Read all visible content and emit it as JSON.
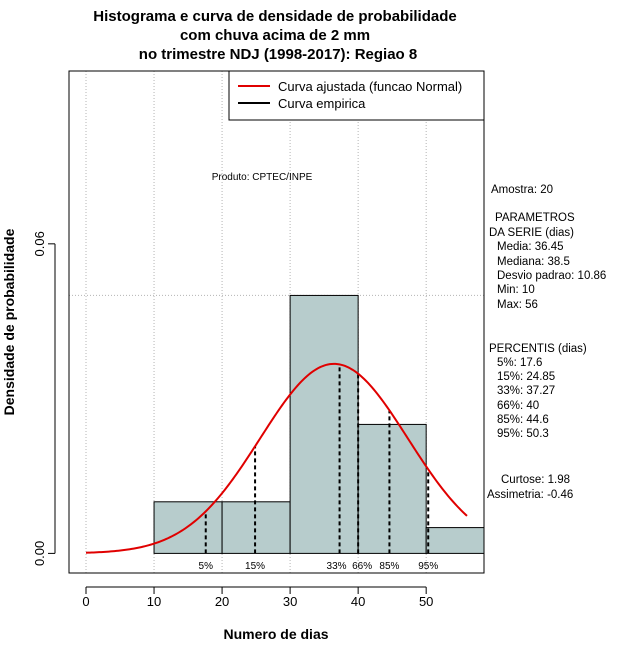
{
  "chart_data": {
    "type": "bar",
    "title": [
      "Histograma e curva de densidade de probabilidade",
      "com chuva acima de 2 mm",
      "no trimestre NDJ (1998-2017): Regiao 8"
    ],
    "xlabel": "Numero de dias",
    "ylabel": "Densidade de probabilidade",
    "xlim": [
      -2.5,
      58.5
    ],
    "ylim": [
      -0.0038,
      0.0935
    ],
    "x_ticks": [
      0,
      10,
      20,
      30,
      40,
      50
    ],
    "y_ticks": [
      0.0,
      0.06
    ],
    "y_tick_labels": [
      "0.00",
      "0.06"
    ],
    "x_gridlines": [
      0,
      10,
      20,
      30,
      40,
      50
    ],
    "y_gridline": 0.05,
    "histogram": {
      "bins": [
        {
          "from": 10,
          "to": 20,
          "density": 0.01
        },
        {
          "from": 20,
          "to": 30,
          "density": 0.01
        },
        {
          "from": 30,
          "to": 40,
          "density": 0.05
        },
        {
          "from": 40,
          "to": 50,
          "density": 0.025
        },
        {
          "from": 50,
          "to": 60,
          "density": 0.005
        }
      ],
      "fill": "#b7cccc"
    },
    "fitted_curve": {
      "distribution": "normal",
      "mean": 36.45,
      "sd": 10.86,
      "from": 0,
      "to": 56,
      "color": "#e00000"
    },
    "percentile_markers": [
      {
        "label": "5%",
        "x": 17.6
      },
      {
        "label": "15%",
        "x": 24.85
      },
      {
        "label": "33%",
        "x": 37.27
      },
      {
        "label": "66%",
        "x": 40
      },
      {
        "label": "85%",
        "x": 44.6
      },
      {
        "label": "95%",
        "x": 50.3
      }
    ],
    "legend": {
      "position": "top-right",
      "entries": [
        {
          "label": "Curva ajustada (funcao Normal)",
          "color": "#e00000"
        },
        {
          "label": "Curva empirica",
          "color": "#000000"
        }
      ]
    }
  },
  "credit": "Produto: CPTEC/INPE",
  "stats": {
    "amostra": "Amostra: 20",
    "param_header_1": "PARAMETROS",
    "param_header_2": "DA SERIE (dias)",
    "media": "Media: 36.45",
    "mediana": "Mediana: 38.5",
    "desvio": "Desvio padrao: 10.86",
    "min": "Min: 10",
    "max": "Max: 56",
    "percentis_header": "PERCENTIS (dias)",
    "p5": "5%: 17.6",
    "p15": "15%: 24.85",
    "p33": "33%: 37.27",
    "p66": "66%: 40",
    "p85": "85%: 44.6",
    "p95": "95%: 50.3",
    "curtose": "Curtose: 1.98",
    "assimetria": "Assimetria: -0.46"
  }
}
